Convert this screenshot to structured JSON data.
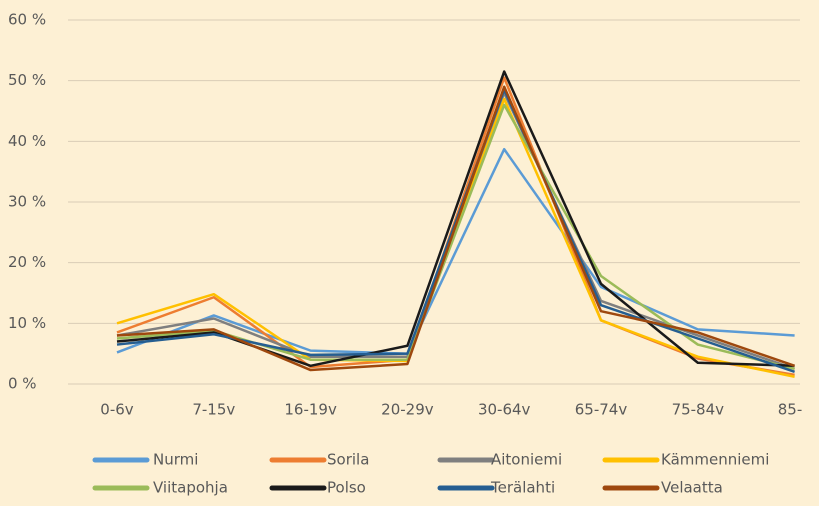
{
  "chart_data": {
    "type": "line",
    "categories": [
      "0-6v",
      "7-15v",
      "16-19v",
      "20-29v",
      "30-64v",
      "65-74v",
      "75-84v",
      "85-"
    ],
    "series": [
      {
        "name": "Nurmi",
        "color": "#5b9bd5",
        "values": [
          5.2,
          11.3,
          5.5,
          5.0,
          38.7,
          16.0,
          9.0,
          8.0
        ]
      },
      {
        "name": "Sorila",
        "color": "#ed7d31",
        "values": [
          8.5,
          14.3,
          2.8,
          4.0,
          50.5,
          10.5,
          4.2,
          1.5
        ]
      },
      {
        "name": "Aitoniemi",
        "color": "#7f7f7f",
        "values": [
          8.0,
          10.8,
          4.5,
          4.5,
          48.0,
          13.7,
          8.0,
          2.5
        ]
      },
      {
        "name": "Kämmenniemi",
        "color": "#ffc000",
        "values": [
          10.0,
          14.8,
          4.0,
          3.8,
          47.0,
          10.5,
          4.5,
          1.2
        ]
      },
      {
        "name": "Viitapohja",
        "color": "#9bbb59",
        "values": [
          7.5,
          8.8,
          4.0,
          4.0,
          46.0,
          17.8,
          6.5,
          2.5
        ]
      },
      {
        "name": "Polso",
        "color": "#1a1a1a",
        "values": [
          7.0,
          8.5,
          3.0,
          6.3,
          51.5,
          16.5,
          3.5,
          3.0
        ]
      },
      {
        "name": "Terälahti",
        "color": "#255e91",
        "values": [
          6.5,
          8.2,
          4.8,
          5.0,
          48.5,
          13.0,
          7.5,
          2.0
        ]
      },
      {
        "name": "Velaatta",
        "color": "#9e480e",
        "values": [
          8.0,
          9.0,
          2.3,
          3.3,
          49.0,
          12.0,
          8.5,
          3.0
        ]
      }
    ],
    "ylim": [
      0,
      60
    ],
    "yticks": [
      {
        "value": 0,
        "label": "0 %"
      },
      {
        "value": 10,
        "label": "10 %"
      },
      {
        "value": 20,
        "label": "20 %"
      },
      {
        "value": 30,
        "label": "30 %"
      },
      {
        "value": 40,
        "label": "40 %"
      },
      {
        "value": 50,
        "label": "50 %"
      },
      {
        "value": 60,
        "label": "60 %"
      }
    ],
    "grid": true
  }
}
